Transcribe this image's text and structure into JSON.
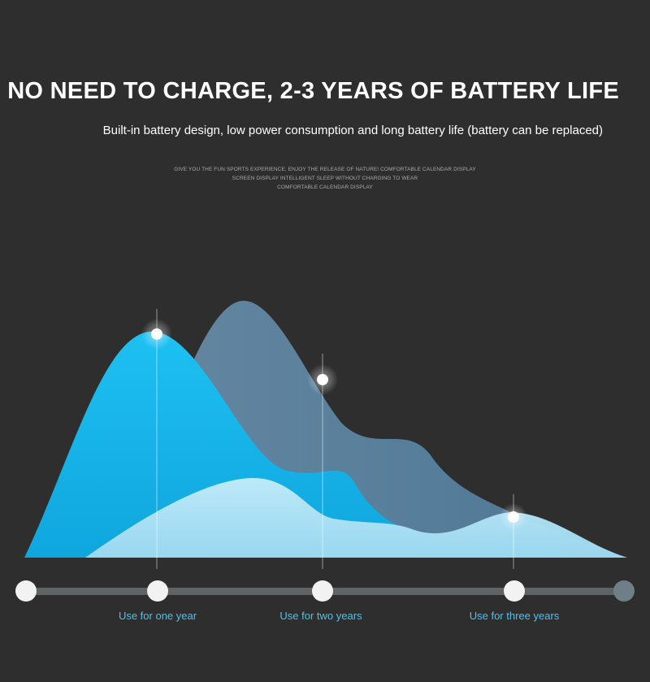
{
  "headline": "NO NEED TO CHARGE, 2-3 YEARS OF BATTERY LIFE",
  "subheadline": "Built-in battery design, low power consumption and long battery life (battery can be replaced)",
  "fine_print": [
    "GIVE YOU THE FUN SPORTS EXPERIENCE, ENJOY THE RELEASE OF NATURE! COMFORTABLE CALENDAR DISPLAY",
    "SCREEN DISPLAY INTELLIGENT SLEEP WITHOUT CHARGING TO WEAR",
    "COMFORTABLE CALENDAR DISPLAY"
  ],
  "timeline": {
    "labels": [
      "Use for one year",
      "Use for two years",
      "Use for three years"
    ]
  },
  "colors": {
    "background": "#2e2e2e",
    "wave_back": "#5b87a6",
    "wave_mid": "#19b2ea",
    "wave_front": "#aee2f5",
    "label": "#4ec1ee",
    "track": "#5e6366",
    "end_marker": "#6f7f88"
  }
}
